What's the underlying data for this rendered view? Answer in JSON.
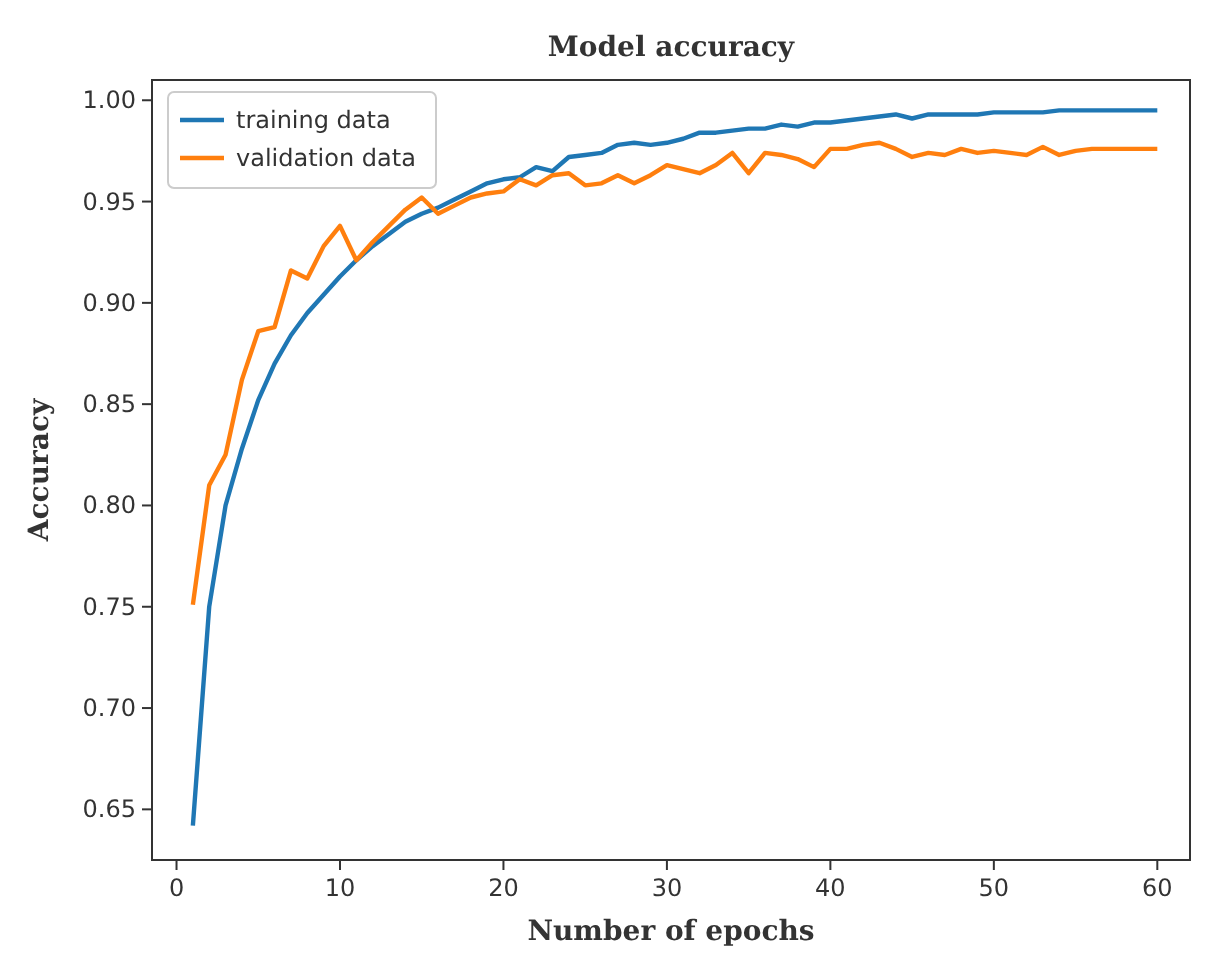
{
  "chart_data": {
    "type": "line",
    "title": "Model accuracy",
    "xlabel": "Number of epochs",
    "ylabel": "Accuracy",
    "x": [
      1,
      2,
      3,
      4,
      5,
      6,
      7,
      8,
      9,
      10,
      11,
      12,
      13,
      14,
      15,
      16,
      17,
      18,
      19,
      20,
      21,
      22,
      23,
      24,
      25,
      26,
      27,
      28,
      29,
      30,
      31,
      32,
      33,
      34,
      35,
      36,
      37,
      38,
      39,
      40,
      41,
      42,
      43,
      44,
      45,
      46,
      47,
      48,
      49,
      50,
      51,
      52,
      53,
      54,
      55,
      56,
      57,
      58,
      59,
      60
    ],
    "series": [
      {
        "name": "training data",
        "color": "#1f77b4",
        "values": [
          0.642,
          0.75,
          0.8,
          0.828,
          0.852,
          0.87,
          0.884,
          0.895,
          0.904,
          0.913,
          0.921,
          0.928,
          0.934,
          0.94,
          0.944,
          0.947,
          0.951,
          0.955,
          0.959,
          0.961,
          0.962,
          0.967,
          0.965,
          0.972,
          0.973,
          0.974,
          0.978,
          0.979,
          0.978,
          0.979,
          0.981,
          0.984,
          0.984,
          0.985,
          0.986,
          0.986,
          0.988,
          0.987,
          0.989,
          0.989,
          0.99,
          0.991,
          0.992,
          0.993,
          0.991,
          0.993,
          0.993,
          0.993,
          0.993,
          0.994,
          0.994,
          0.994,
          0.994,
          0.995,
          0.995,
          0.995,
          0.995,
          0.995,
          0.995,
          0.995
        ]
      },
      {
        "name": "validation data",
        "color": "#ff7f0e",
        "values": [
          0.751,
          0.81,
          0.825,
          0.862,
          0.886,
          0.888,
          0.916,
          0.912,
          0.928,
          0.938,
          0.921,
          0.93,
          0.938,
          0.946,
          0.952,
          0.944,
          0.948,
          0.952,
          0.954,
          0.955,
          0.961,
          0.958,
          0.963,
          0.964,
          0.958,
          0.959,
          0.963,
          0.959,
          0.963,
          0.968,
          0.966,
          0.964,
          0.968,
          0.974,
          0.964,
          0.974,
          0.973,
          0.971,
          0.967,
          0.976,
          0.976,
          0.978,
          0.979,
          0.976,
          0.972,
          0.974,
          0.973,
          0.976,
          0.974,
          0.975,
          0.974,
          0.973,
          0.977,
          0.973,
          0.975,
          0.976,
          0.976,
          0.976,
          0.976,
          0.976
        ]
      }
    ],
    "xlim": [
      -1.5,
      62
    ],
    "xticks": [
      0,
      10,
      20,
      30,
      40,
      50,
      60
    ],
    "ylim": [
      0.625,
      1.01
    ],
    "yticks": [
      {
        "value": 0.65,
        "label": "0.65"
      },
      {
        "value": 0.7,
        "label": "0.70"
      },
      {
        "value": 0.75,
        "label": "0.75"
      },
      {
        "value": 0.8,
        "label": "0.80"
      },
      {
        "value": 0.85,
        "label": "0.85"
      },
      {
        "value": 0.9,
        "label": "0.90"
      },
      {
        "value": 0.95,
        "label": "0.95"
      },
      {
        "value": 1.0,
        "label": "1.00"
      }
    ],
    "grid": false,
    "legend": "top left",
    "line_style": "solid"
  }
}
